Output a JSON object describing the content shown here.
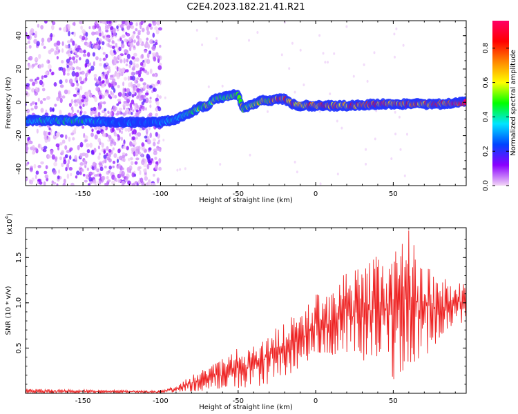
{
  "chart_data": [
    {
      "type": "heatmap",
      "title": "C2E4.2023.182.21.41.R21",
      "xlabel": "Height of straight line (km)",
      "ylabel": "Frequency (Hz)",
      "xlim": [
        -187,
        97
      ],
      "ylim": [
        -50,
        49
      ],
      "xticks": [
        -150,
        -100,
        -50,
        0,
        50
      ],
      "yticks": [
        -40,
        -20,
        0,
        20,
        40
      ],
      "colorbar": {
        "label": "Normalized spectral amplitude",
        "range": [
          0,
          0.96
        ],
        "ticks": [
          "0.0",
          "0.2",
          "0.4",
          "0.6",
          "0.8"
        ],
        "colors": [
          "#f2d6f6",
          "#8a00ff",
          "#0044ff",
          "#00e5ff",
          "#00ff00",
          "#ffff00",
          "#ff8800",
          "#ff0000",
          "#ff0066"
        ]
      },
      "trace": {
        "x": [
          -187,
          -150,
          -130,
          -110,
          -100,
          -90,
          -80,
          -75,
          -70,
          -65,
          -60,
          -55,
          -50,
          -47,
          -45,
          -40,
          -35,
          -30,
          -25,
          -20,
          -15,
          -10,
          0,
          20,
          40,
          60,
          80,
          97
        ],
        "y": [
          -11,
          -11,
          -12,
          -12,
          -12,
          -10,
          -6,
          -3,
          -2,
          2,
          3,
          4,
          5,
          -4,
          -3,
          -1,
          1,
          1,
          2,
          2,
          -1,
          -2,
          -2,
          -2,
          -1,
          -1,
          -1,
          0
        ],
        "amplitude": [
          0.4,
          0.45,
          0.3,
          0.3,
          0.35,
          0.45,
          0.5,
          0.55,
          0.6,
          0.55,
          0.6,
          0.6,
          0.65,
          0.7,
          0.55,
          0.6,
          0.65,
          0.7,
          0.9,
          0.8,
          0.85,
          0.8,
          0.9,
          0.85,
          0.9,
          0.85,
          0.9,
          0.95
        ]
      },
      "noise_regions": [
        {
          "x": [
            -187,
            -143
          ],
          "density": 0.5
        },
        {
          "x": [
            -143,
            -100
          ],
          "density": 0.9
        }
      ]
    },
    {
      "type": "line",
      "xlabel": "Height of straight line (km)",
      "ylabel": "SNR (10 * v/v)",
      "multiplier": "(x10",
      "multiplier_exp": "4",
      "xlim": [
        -187,
        97
      ],
      "ylim": [
        0,
        1.83
      ],
      "xticks": [
        -150,
        -100,
        -50,
        0,
        50
      ],
      "yticks": [
        "0.5",
        "1.0",
        "1.5"
      ],
      "color": "#ee2222",
      "envelope": {
        "x": [
          -187,
          -100,
          -90,
          -80,
          -70,
          -60,
          -50,
          -45,
          -40,
          -30,
          -20,
          -10,
          0,
          10,
          20,
          30,
          40,
          50,
          60,
          70,
          80,
          90,
          97
        ],
        "min": [
          0,
          0,
          0.01,
          0.02,
          0.03,
          0.05,
          0.05,
          0.05,
          0.05,
          0.1,
          0.15,
          0.3,
          0.4,
          0.4,
          0.45,
          0.35,
          0.35,
          0.15,
          0.3,
          0.4,
          0.55,
          0.75,
          0.8
        ],
        "max": [
          0.05,
          0.03,
          0.08,
          0.2,
          0.28,
          0.38,
          0.5,
          0.5,
          0.52,
          0.7,
          0.8,
          0.9,
          1.1,
          1.2,
          1.35,
          1.4,
          1.55,
          1.55,
          1.83,
          1.45,
          1.3,
          1.25,
          1.2
        ]
      }
    }
  ]
}
